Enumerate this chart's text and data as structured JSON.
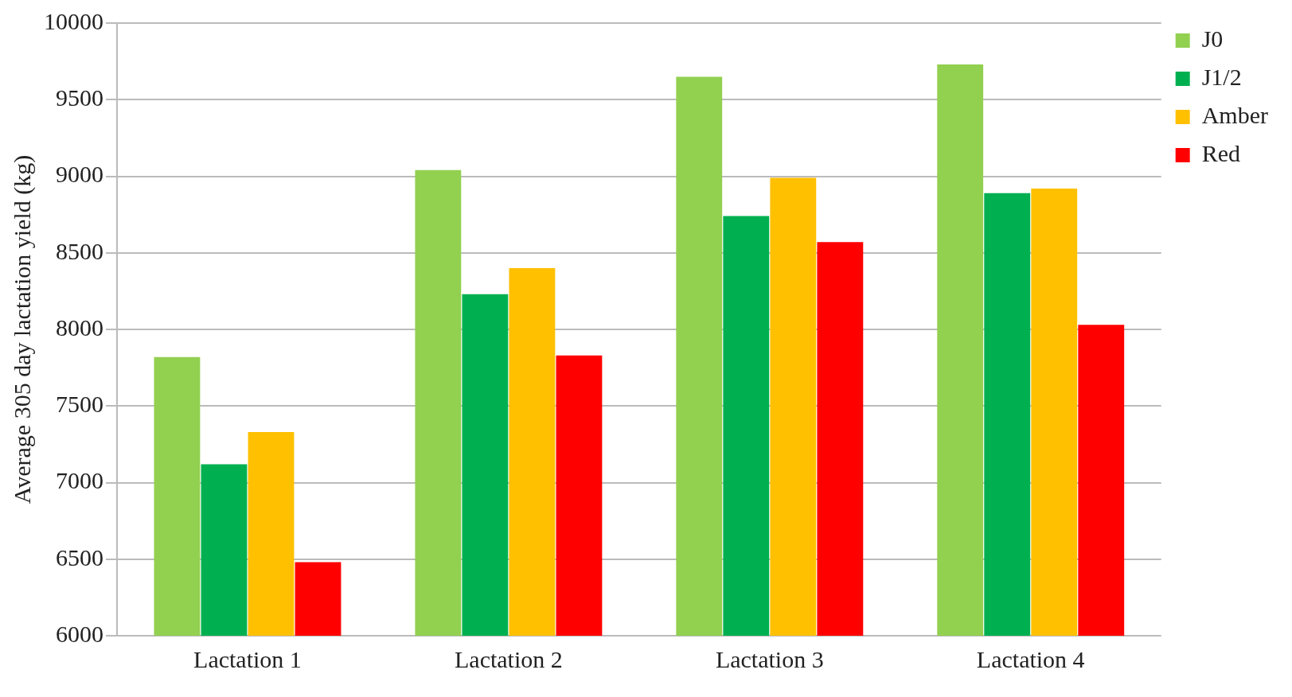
{
  "chart_data": {
    "type": "bar",
    "ylabel": "Average 305 day lactation yield (kg)",
    "categories": [
      "Lactation 1",
      "Lactation 2",
      "Lactation 3",
      "Lactation 4"
    ],
    "series": [
      {
        "name": "J0",
        "color": "#92d050",
        "values": [
          7820,
          9040,
          9650,
          9730
        ]
      },
      {
        "name": "J1/2",
        "color": "#00b050",
        "values": [
          7120,
          8230,
          8740,
          8890
        ]
      },
      {
        "name": "Amber",
        "color": "#ffc000",
        "values": [
          7330,
          8400,
          8990,
          8920
        ]
      },
      {
        "name": "Red",
        "color": "#ff0000",
        "values": [
          6480,
          7830,
          8570,
          8030
        ]
      }
    ],
    "ylim": [
      6000,
      10000
    ],
    "yticks": [
      6000,
      6500,
      7000,
      7500,
      8000,
      8500,
      9000,
      9500,
      10000
    ],
    "grid": "y",
    "legend": "top right"
  }
}
